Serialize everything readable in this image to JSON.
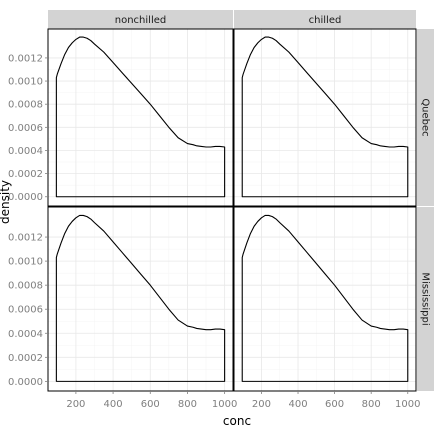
{
  "chart_data": {
    "type": "area",
    "xlabel": "conc",
    "ylabel": "density",
    "xlim": [
      50,
      1045
    ],
    "ylim": [
      -8e-05,
      0.00145
    ],
    "x_ticks": [
      200,
      400,
      600,
      800,
      1000
    ],
    "x_tick_labels": [
      "200",
      "400",
      "600",
      "800",
      "1000"
    ],
    "y_ticks": [
      0,
      0.0002,
      0.0004,
      0.0006,
      0.0008,
      0.001,
      0.0012
    ],
    "y_tick_labels": [
      "0.0000",
      "0.0002",
      "0.0004",
      "0.0006",
      "0.0008",
      "0.0010",
      "0.0012"
    ],
    "grid": true,
    "facet_columns": [
      "nonchilled",
      "chilled"
    ],
    "facet_rows": [
      "Quebec",
      "Mississippi"
    ],
    "density_x": [
      95,
      100,
      120,
      140,
      160,
      180,
      200,
      220,
      240,
      260,
      280,
      300,
      350,
      400,
      450,
      500,
      550,
      600,
      650,
      700,
      750,
      800,
      830,
      850,
      875,
      900,
      925,
      950,
      975,
      1000
    ],
    "density_y": [
      0.00103,
      0.00106,
      0.00115,
      0.00123,
      0.00129,
      0.00133,
      0.00136,
      0.00138,
      0.00138,
      0.00137,
      0.00135,
      0.00132,
      0.00125,
      0.00116,
      0.00107,
      0.00098,
      0.00089,
      0.0008,
      0.0007,
      0.0006,
      0.00051,
      0.00046,
      0.00045,
      0.00044,
      0.000435,
      0.00043,
      0.00043,
      0.000435,
      0.000435,
      0.00043
    ],
    "panels": [
      {
        "col": "nonchilled",
        "row": "Quebec"
      },
      {
        "col": "chilled",
        "row": "Quebec"
      },
      {
        "col": "nonchilled",
        "row": "Mississippi"
      },
      {
        "col": "chilled",
        "row": "Mississippi"
      }
    ]
  }
}
